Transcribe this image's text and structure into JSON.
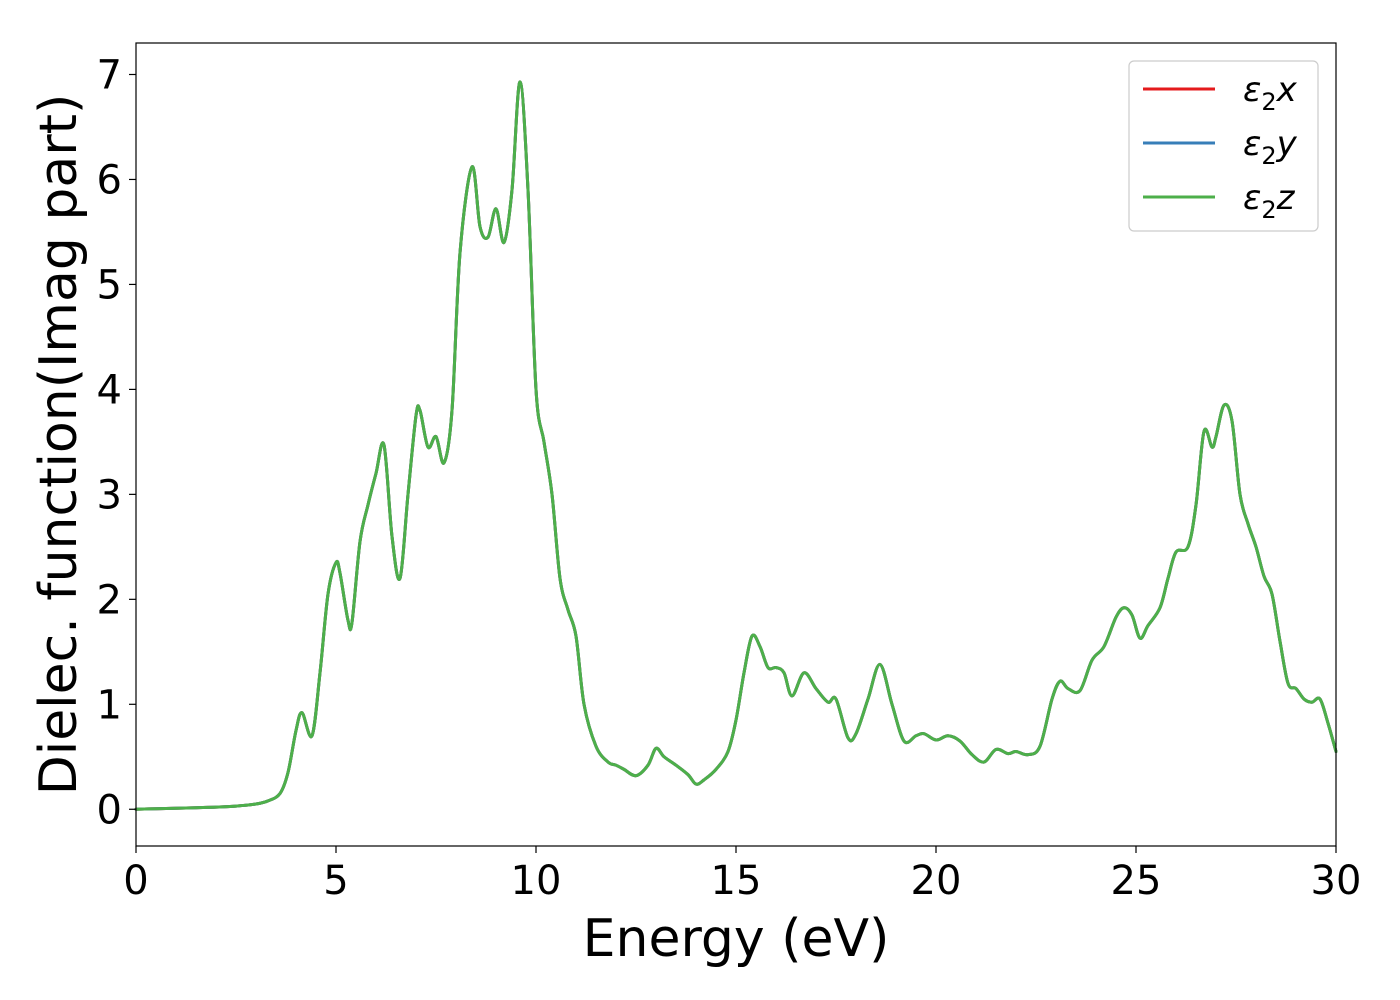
{
  "chart_data": {
    "type": "line",
    "title": "",
    "xlabel": "Energy (eV)",
    "ylabel": "Dielec. function(Imag part)",
    "xlim": [
      0,
      30
    ],
    "ylim": [
      -0.35,
      7.3
    ],
    "xticks": [
      0,
      5,
      10,
      15,
      20,
      25,
      30
    ],
    "yticks": [
      0,
      1,
      2,
      3,
      4,
      5,
      6,
      7
    ],
    "grid": false,
    "legend_position": "top-right",
    "legend_labels": [
      {
        "main": "ε",
        "sub": "2",
        "tail": "x"
      },
      {
        "main": "ε",
        "sub": "2",
        "tail": "y"
      },
      {
        "main": "ε",
        "sub": "2",
        "tail": "z"
      }
    ],
    "x": [
      0,
      0.5,
      1,
      1.5,
      2,
      2.5,
      3,
      3.3,
      3.6,
      3.8,
      4.0,
      4.15,
      4.4,
      4.6,
      4.8,
      5.0,
      5.1,
      5.3,
      5.4,
      5.6,
      5.8,
      6.0,
      6.2,
      6.4,
      6.6,
      6.8,
      7.0,
      7.1,
      7.3,
      7.5,
      7.7,
      7.9,
      8.1,
      8.4,
      8.6,
      8.8,
      9.0,
      9.2,
      9.4,
      9.6,
      9.8,
      10.0,
      10.2,
      10.4,
      10.6,
      10.8,
      11.0,
      11.2,
      11.5,
      11.8,
      12.0,
      12.2,
      12.5,
      12.8,
      13.0,
      13.2,
      13.5,
      13.8,
      14.0,
      14.2,
      14.5,
      14.8,
      15.0,
      15.2,
      15.4,
      15.6,
      15.8,
      16.0,
      16.2,
      16.4,
      16.7,
      17.0,
      17.3,
      17.5,
      17.8,
      18.0,
      18.3,
      18.6,
      18.9,
      19.2,
      19.5,
      19.7,
      20.0,
      20.3,
      20.6,
      20.9,
      21.2,
      21.5,
      21.8,
      22.0,
      22.3,
      22.6,
      22.9,
      23.1,
      23.3,
      23.6,
      23.9,
      24.2,
      24.5,
      24.7,
      24.9,
      25.1,
      25.3,
      25.6,
      25.8,
      26.0,
      26.3,
      26.5,
      26.7,
      26.9,
      27.0,
      27.2,
      27.4,
      27.6,
      27.8,
      28.0,
      28.2,
      28.4,
      28.6,
      28.8,
      29.0,
      29.2,
      29.4,
      29.6,
      29.8,
      30.0
    ],
    "series": [
      {
        "name": "ε2x",
        "color": "#e41a1c",
        "values": [
          0,
          0.005,
          0.01,
          0.015,
          0.02,
          0.03,
          0.05,
          0.08,
          0.15,
          0.35,
          0.75,
          0.92,
          0.7,
          1.3,
          2.05,
          2.35,
          2.25,
          1.8,
          1.78,
          2.55,
          2.9,
          3.2,
          3.47,
          2.6,
          2.2,
          3.0,
          3.75,
          3.8,
          3.45,
          3.55,
          3.3,
          3.8,
          5.3,
          6.12,
          5.55,
          5.45,
          5.72,
          5.4,
          5.9,
          6.93,
          5.9,
          4.0,
          3.5,
          3.0,
          2.2,
          1.9,
          1.65,
          1.0,
          0.6,
          0.45,
          0.42,
          0.38,
          0.32,
          0.42,
          0.58,
          0.5,
          0.42,
          0.33,
          0.24,
          0.28,
          0.38,
          0.55,
          0.85,
          1.3,
          1.65,
          1.55,
          1.35,
          1.35,
          1.3,
          1.08,
          1.3,
          1.15,
          1.02,
          1.05,
          0.68,
          0.72,
          1.05,
          1.38,
          1.0,
          0.65,
          0.7,
          0.72,
          0.66,
          0.7,
          0.65,
          0.52,
          0.45,
          0.57,
          0.53,
          0.55,
          0.52,
          0.6,
          1.05,
          1.22,
          1.15,
          1.13,
          1.42,
          1.55,
          1.83,
          1.92,
          1.85,
          1.63,
          1.75,
          1.92,
          2.2,
          2.45,
          2.5,
          2.9,
          3.6,
          3.45,
          3.55,
          3.85,
          3.7,
          3.0,
          2.72,
          2.5,
          2.22,
          2.05,
          1.6,
          1.2,
          1.15,
          1.05,
          1.02,
          1.05,
          0.82,
          0.55
        ]
      },
      {
        "name": "ε2y",
        "color": "#377eb8",
        "values": [
          0,
          0.005,
          0.01,
          0.015,
          0.02,
          0.03,
          0.05,
          0.08,
          0.15,
          0.35,
          0.75,
          0.92,
          0.7,
          1.3,
          2.05,
          2.35,
          2.25,
          1.8,
          1.78,
          2.55,
          2.9,
          3.2,
          3.47,
          2.6,
          2.2,
          3.0,
          3.75,
          3.8,
          3.45,
          3.55,
          3.3,
          3.8,
          5.3,
          6.12,
          5.55,
          5.45,
          5.72,
          5.4,
          5.9,
          6.93,
          5.9,
          4.0,
          3.5,
          3.0,
          2.2,
          1.9,
          1.65,
          1.0,
          0.6,
          0.45,
          0.42,
          0.38,
          0.32,
          0.42,
          0.58,
          0.5,
          0.42,
          0.33,
          0.24,
          0.28,
          0.38,
          0.55,
          0.85,
          1.3,
          1.65,
          1.55,
          1.35,
          1.35,
          1.3,
          1.08,
          1.3,
          1.15,
          1.02,
          1.05,
          0.68,
          0.72,
          1.05,
          1.38,
          1.0,
          0.65,
          0.7,
          0.72,
          0.66,
          0.7,
          0.65,
          0.52,
          0.45,
          0.57,
          0.53,
          0.55,
          0.52,
          0.6,
          1.05,
          1.22,
          1.15,
          1.13,
          1.42,
          1.55,
          1.83,
          1.92,
          1.85,
          1.63,
          1.75,
          1.92,
          2.2,
          2.45,
          2.5,
          2.9,
          3.6,
          3.45,
          3.55,
          3.85,
          3.7,
          3.0,
          2.72,
          2.5,
          2.22,
          2.05,
          1.6,
          1.2,
          1.15,
          1.05,
          1.02,
          1.05,
          0.82,
          0.55
        ]
      },
      {
        "name": "ε2z",
        "color": "#4daf4a",
        "values": [
          0,
          0.005,
          0.01,
          0.015,
          0.02,
          0.03,
          0.05,
          0.08,
          0.15,
          0.35,
          0.75,
          0.92,
          0.7,
          1.3,
          2.05,
          2.35,
          2.25,
          1.8,
          1.78,
          2.55,
          2.9,
          3.2,
          3.47,
          2.6,
          2.2,
          3.0,
          3.75,
          3.8,
          3.45,
          3.55,
          3.3,
          3.8,
          5.3,
          6.12,
          5.55,
          5.45,
          5.72,
          5.4,
          5.9,
          6.93,
          5.9,
          4.0,
          3.5,
          3.0,
          2.2,
          1.9,
          1.65,
          1.0,
          0.6,
          0.45,
          0.42,
          0.38,
          0.32,
          0.42,
          0.58,
          0.5,
          0.42,
          0.33,
          0.24,
          0.28,
          0.38,
          0.55,
          0.85,
          1.3,
          1.65,
          1.55,
          1.35,
          1.35,
          1.3,
          1.08,
          1.3,
          1.15,
          1.02,
          1.05,
          0.68,
          0.72,
          1.05,
          1.38,
          1.0,
          0.65,
          0.7,
          0.72,
          0.66,
          0.7,
          0.65,
          0.52,
          0.45,
          0.57,
          0.53,
          0.55,
          0.52,
          0.6,
          1.05,
          1.22,
          1.15,
          1.13,
          1.42,
          1.55,
          1.83,
          1.92,
          1.85,
          1.63,
          1.75,
          1.92,
          2.2,
          2.45,
          2.5,
          2.9,
          3.6,
          3.45,
          3.55,
          3.85,
          3.7,
          3.0,
          2.72,
          2.5,
          2.22,
          2.05,
          1.6,
          1.2,
          1.15,
          1.05,
          1.02,
          1.05,
          0.82,
          0.55
        ]
      }
    ]
  }
}
